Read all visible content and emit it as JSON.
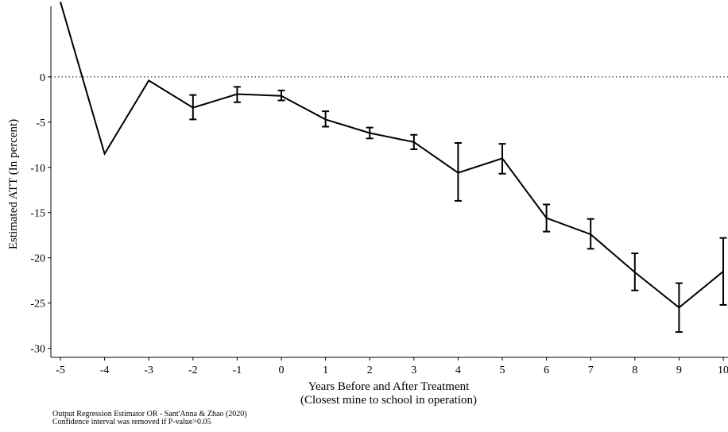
{
  "chart_data": {
    "type": "line",
    "xlabel": "Years Before and After Treatment",
    "xlabel_sub": "(Closest mine to school in operation)",
    "ylabel": "Estimated ATT (In percent)",
    "xlim": [
      -5,
      10
    ],
    "ylim": [
      -31,
      8.5
    ],
    "x_ticks": [
      -5,
      -4,
      -3,
      -2,
      -1,
      0,
      1,
      2,
      3,
      4,
      5,
      6,
      7,
      8,
      9,
      10
    ],
    "y_ticks": [
      0,
      -5,
      -10,
      -15,
      -20,
      -25,
      -30
    ],
    "reference_line": {
      "y": 0,
      "style": "dotted"
    },
    "series": [
      {
        "x": [
          -5,
          -4,
          -3,
          -2,
          -1,
          0,
          1,
          2,
          3,
          4,
          5,
          6,
          7,
          8,
          9,
          10
        ],
        "y": [
          8.3,
          -8.5,
          -0.4,
          -3.4,
          -1.9,
          -2.1,
          -4.7,
          -6.2,
          -7.2,
          -10.6,
          -9.0,
          -15.6,
          -17.4,
          -21.6,
          -25.5,
          -21.5
        ],
        "ci_low": [
          null,
          null,
          null,
          -4.7,
          -2.8,
          -2.6,
          -5.5,
          -6.8,
          -8.0,
          -13.7,
          -10.7,
          -17.1,
          -19.0,
          -23.6,
          -28.2,
          -25.2
        ],
        "ci_high": [
          null,
          null,
          null,
          -2.0,
          -1.1,
          -1.5,
          -3.8,
          -5.6,
          -6.4,
          -7.3,
          -7.4,
          -14.1,
          -15.7,
          -19.5,
          -22.8,
          -17.8
        ]
      }
    ]
  },
  "notes": {
    "line1": "Output Regression Estimator OR - Sant'Anna & Zhao (2020)",
    "line2": "Confidence interval was removed if P-value>0.05"
  }
}
